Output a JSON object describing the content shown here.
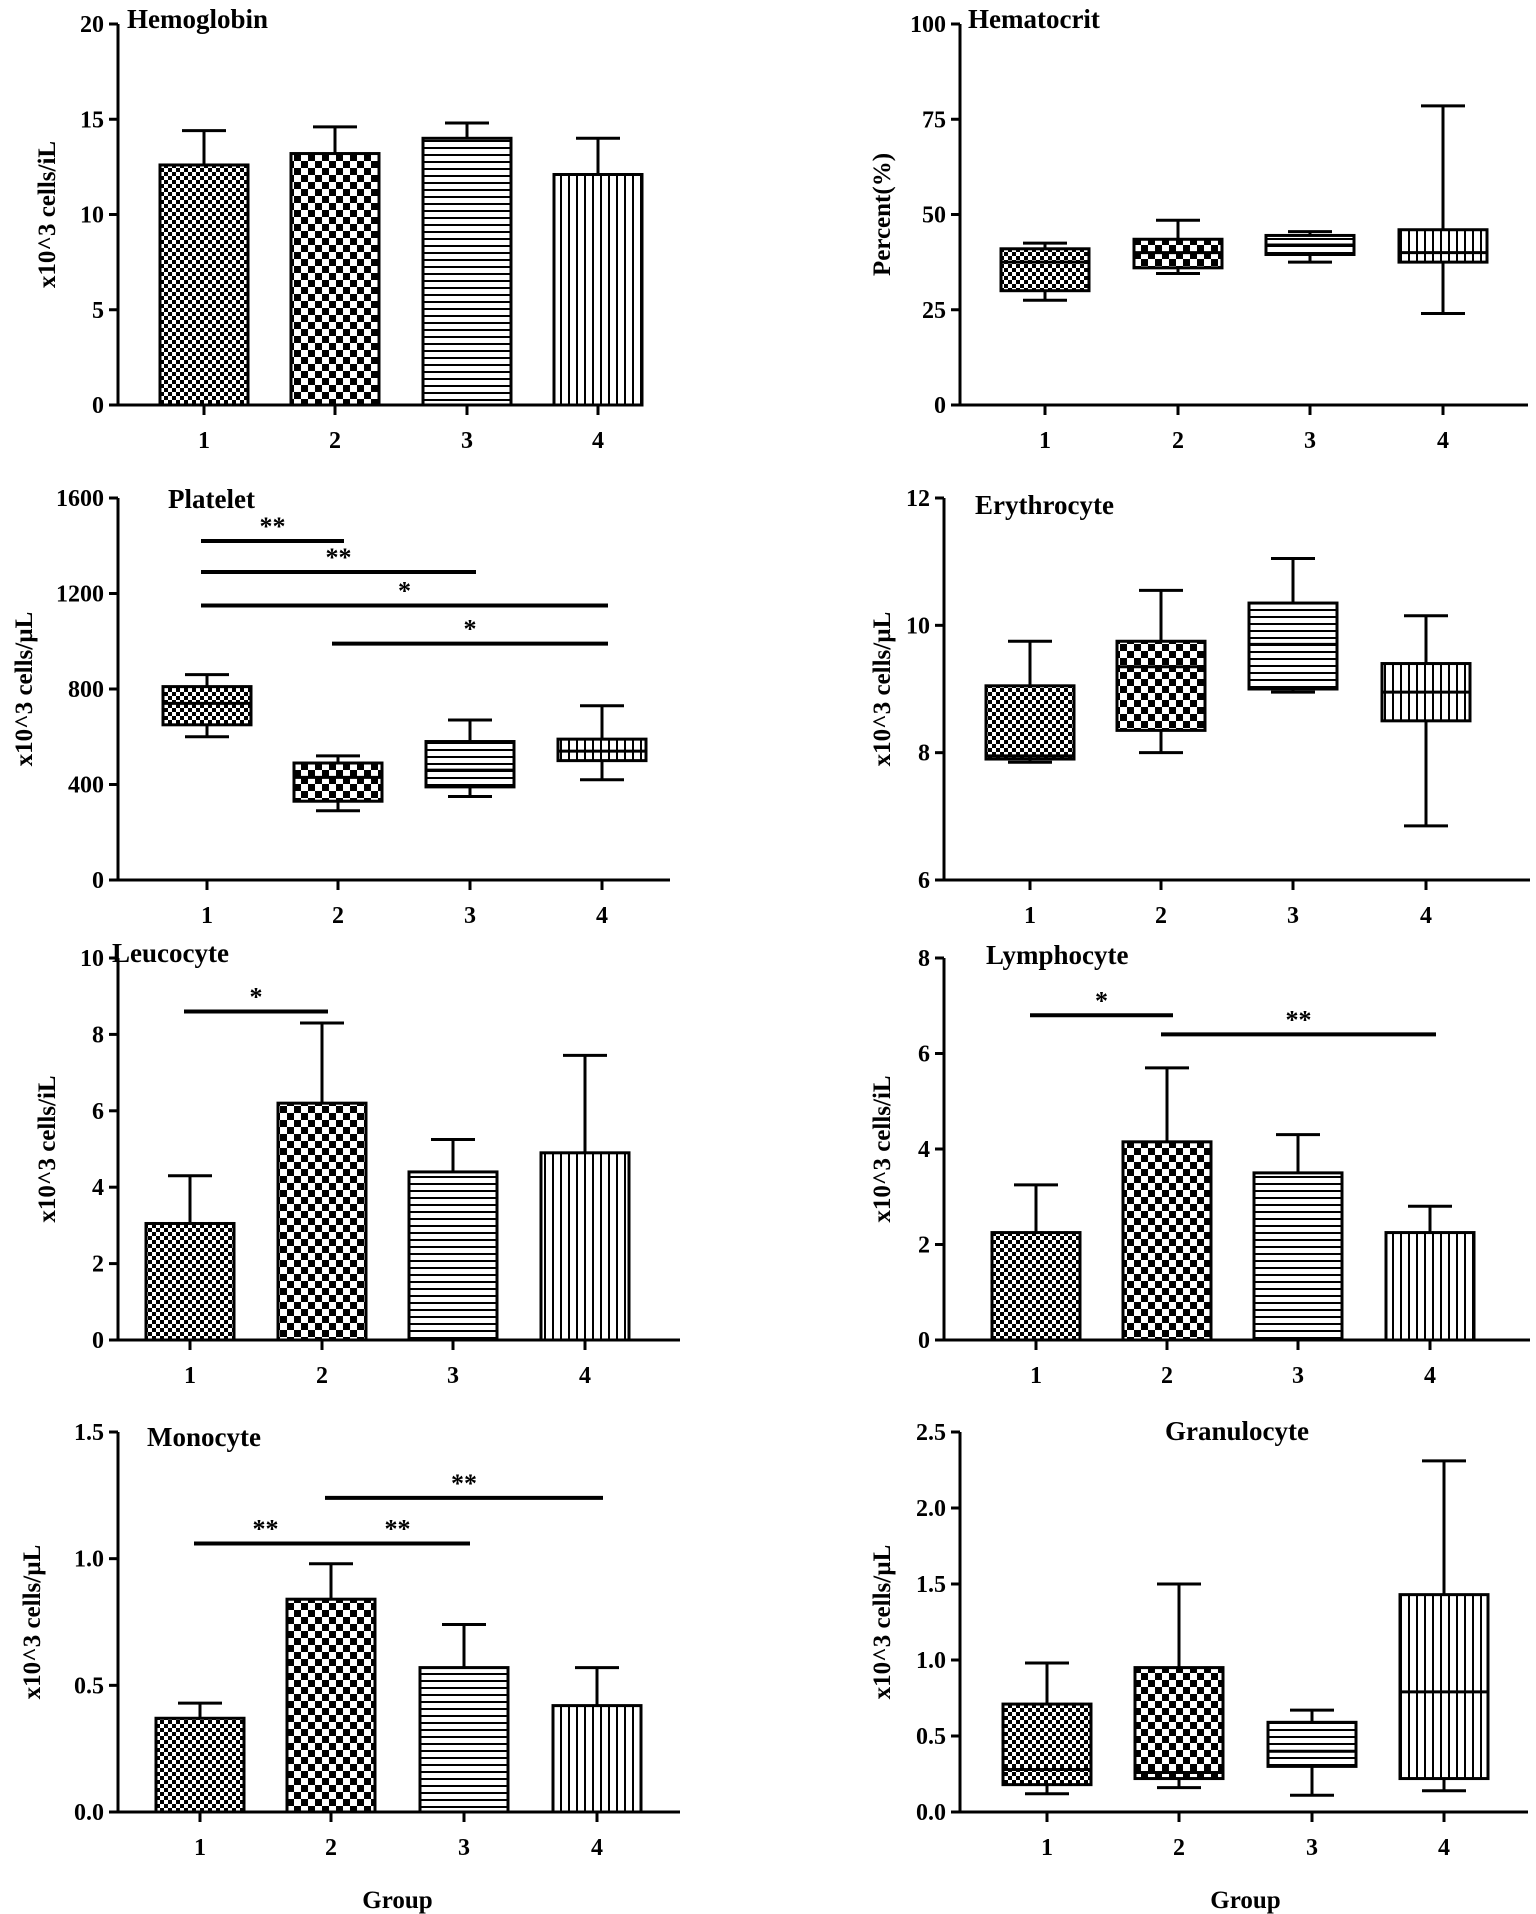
{
  "patterns": {
    "1": "checker-small",
    "2": "checker-large",
    "3": "horizontal-lines",
    "4": "vertical-lines"
  },
  "chart_data": [
    {
      "type": "bar",
      "title": "Hemoglobin",
      "xlabel": "",
      "ylabel": "x10^3 cells/iL",
      "ylim": [
        0,
        20
      ],
      "yticks": [
        0,
        5,
        10,
        15,
        20
      ],
      "categories": [
        "1",
        "2",
        "3",
        "4"
      ],
      "values": [
        12.6,
        13.2,
        14.0,
        12.1
      ],
      "error_upper": [
        14.4,
        14.6,
        14.8,
        14.0
      ],
      "significance": []
    },
    {
      "type": "box",
      "title": "Hematocrit",
      "xlabel": "",
      "ylabel": "Percent(%)",
      "ylim": [
        0,
        100
      ],
      "yticks": [
        0,
        25,
        50,
        75,
        100
      ],
      "categories": [
        "1",
        "2",
        "3",
        "4"
      ],
      "min": [
        27.5,
        34.5,
        37.5,
        24.0
      ],
      "q1": [
        30.0,
        36.0,
        39.5,
        37.5
      ],
      "median": [
        37.5,
        40.0,
        42.0,
        40.0
      ],
      "q3": [
        41.0,
        43.5,
        44.5,
        46.0
      ],
      "max": [
        42.5,
        48.5,
        45.5,
        78.5
      ],
      "significance": []
    },
    {
      "type": "box",
      "title": "Platelet",
      "xlabel": "",
      "ylabel": "x10^3 cells/µL",
      "ylim": [
        0,
        1600
      ],
      "yticks": [
        0,
        400,
        800,
        1200,
        1600
      ],
      "categories": [
        "1",
        "2",
        "3",
        "4"
      ],
      "min": [
        600,
        290,
        350,
        420
      ],
      "q1": [
        650,
        330,
        390,
        500
      ],
      "median": [
        740,
        430,
        460,
        540
      ],
      "q3": [
        810,
        490,
        580,
        590
      ],
      "max": [
        860,
        520,
        670,
        730
      ],
      "significance": [
        {
          "from": "1",
          "to": "2",
          "label": "**",
          "y": 1420
        },
        {
          "from": "1",
          "to": "3",
          "label": "**",
          "y": 1290
        },
        {
          "from": "1",
          "to": "4",
          "label": "*",
          "y": 1150
        },
        {
          "from": "2",
          "to": "4",
          "label": "*",
          "y": 990
        }
      ]
    },
    {
      "type": "box",
      "title": "Erythrocyte",
      "xlabel": "",
      "ylabel": "x10^3 cells/µL",
      "ylim": [
        6,
        12
      ],
      "yticks": [
        6,
        8,
        10,
        12
      ],
      "categories": [
        "1",
        "2",
        "3",
        "4"
      ],
      "min": [
        7.85,
        8.0,
        8.95,
        6.85
      ],
      "q1": [
        7.9,
        8.35,
        9.0,
        8.5
      ],
      "median": [
        7.95,
        9.35,
        9.7,
        8.95
      ],
      "q3": [
        9.05,
        9.75,
        10.35,
        9.4
      ],
      "max": [
        9.75,
        10.55,
        11.05,
        10.15
      ],
      "significance": []
    },
    {
      "type": "bar",
      "title": "Leucocyte",
      "xlabel": "",
      "ylabel": "x10^3 cells/iL",
      "ylim": [
        0,
        10
      ],
      "yticks": [
        0,
        2,
        4,
        6,
        8,
        10
      ],
      "categories": [
        "1",
        "2",
        "3",
        "4"
      ],
      "values": [
        3.05,
        6.2,
        4.4,
        4.9
      ],
      "error_upper": [
        4.3,
        8.3,
        5.25,
        7.45
      ],
      "significance": [
        {
          "from": "1",
          "to": "2",
          "label": "*",
          "y": 8.6
        }
      ]
    },
    {
      "type": "bar",
      "title": "Lymphocyte",
      "xlabel": "",
      "ylabel": "x10^3 cells/iL",
      "ylim": [
        0,
        8
      ],
      "yticks": [
        0,
        2,
        4,
        6,
        8
      ],
      "categories": [
        "1",
        "2",
        "3",
        "4"
      ],
      "values": [
        2.25,
        4.15,
        3.5,
        2.25
      ],
      "error_upper": [
        3.25,
        5.7,
        4.3,
        2.8
      ],
      "significance": [
        {
          "from": "1",
          "to": "2",
          "label": "*",
          "y": 6.8
        },
        {
          "from": "2",
          "to": "4",
          "label": "**",
          "y": 6.4
        }
      ]
    },
    {
      "type": "bar",
      "title": "Monocyte",
      "xlabel": "Group",
      "ylabel": "x10^3 cells/µL",
      "ylim": [
        0,
        1.5
      ],
      "yticks": [
        "0.0",
        "0.5",
        "1.0",
        "1.5"
      ],
      "categories": [
        "1",
        "2",
        "3",
        "4"
      ],
      "values": [
        0.37,
        0.84,
        0.57,
        0.42
      ],
      "error_upper": [
        0.43,
        0.98,
        0.74,
        0.57
      ],
      "significance": [
        {
          "from": "1",
          "to": "2",
          "label": "**",
          "y": 1.06
        },
        {
          "from": "2",
          "to": "3",
          "label": "**",
          "y": 1.06
        },
        {
          "from": "2",
          "to": "4",
          "label": "**",
          "y": 1.24
        }
      ]
    },
    {
      "type": "box",
      "title": "Granulocyte",
      "xlabel": "Group",
      "ylabel": "x10^3 cells/µL",
      "ylim": [
        0,
        2.5
      ],
      "yticks": [
        "0.0",
        "0.5",
        "1.0",
        "1.5",
        "2.0",
        "2.5"
      ],
      "categories": [
        "1",
        "2",
        "3",
        "4"
      ],
      "min": [
        0.12,
        0.16,
        0.11,
        0.14
      ],
      "q1": [
        0.18,
        0.22,
        0.3,
        0.22
      ],
      "median": [
        0.28,
        0.26,
        0.4,
        0.79
      ],
      "q3": [
        0.71,
        0.95,
        0.59,
        1.43
      ],
      "max": [
        0.98,
        1.5,
        0.67,
        2.31
      ],
      "significance": []
    }
  ]
}
